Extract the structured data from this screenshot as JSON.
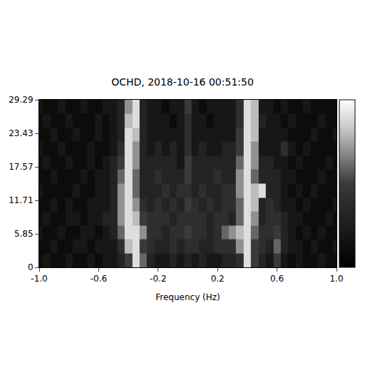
{
  "chart_data": {
    "type": "heatmap",
    "title": "OCHD, 2018-10-16 00:51:50",
    "x_label": "Frequency (Hz)",
    "x": [
      -1.0,
      -0.95,
      -0.9,
      -0.85,
      -0.8,
      -0.75,
      -0.7,
      -0.65,
      -0.6,
      -0.55,
      -0.5,
      -0.45,
      -0.4,
      -0.35,
      -0.3,
      -0.25,
      -0.2,
      -0.15,
      -0.1,
      -0.05,
      0.0,
      0.05,
      0.1,
      0.15,
      0.2,
      0.25,
      0.3,
      0.35,
      0.4,
      0.45,
      0.5,
      0.55,
      0.6,
      0.65,
      0.7,
      0.75,
      0.8,
      0.85,
      0.9,
      0.95,
      1.0
    ],
    "y": [
      1.2,
      3.7,
      6.1,
      8.5,
      11.0,
      13.4,
      15.9,
      18.3,
      20.7,
      23.2,
      25.6,
      28.1
    ],
    "z": [
      [
        1,
        2,
        1,
        1,
        2,
        1,
        1,
        2,
        1,
        2,
        2,
        3,
        5,
        9,
        6,
        3,
        2,
        2,
        3,
        2,
        3,
        2,
        3,
        2,
        2,
        3,
        3,
        4,
        9,
        5,
        3,
        2,
        5,
        2,
        1,
        2,
        1,
        1,
        2,
        1,
        1
      ],
      [
        1,
        1,
        2,
        1,
        1,
        2,
        2,
        1,
        2,
        2,
        2,
        4,
        8,
        9,
        5,
        4,
        3,
        3,
        4,
        3,
        4,
        4,
        3,
        3,
        4,
        4,
        4,
        7,
        9,
        5,
        4,
        3,
        6,
        3,
        2,
        2,
        1,
        2,
        1,
        1,
        2
      ],
      [
        2,
        1,
        1,
        2,
        1,
        1,
        2,
        2,
        1,
        2,
        3,
        6,
        9,
        9,
        7,
        4,
        4,
        3,
        4,
        4,
        5,
        4,
        4,
        3,
        4,
        6,
        7,
        8,
        9,
        6,
        4,
        4,
        5,
        3,
        2,
        1,
        2,
        1,
        2,
        1,
        1
      ],
      [
        1,
        2,
        1,
        1,
        2,
        2,
        1,
        2,
        2,
        3,
        3,
        7,
        9,
        8,
        5,
        4,
        4,
        4,
        3,
        4,
        4,
        4,
        4,
        3,
        4,
        4,
        3,
        6,
        9,
        7,
        3,
        4,
        4,
        3,
        2,
        2,
        1,
        1,
        1,
        2,
        1
      ],
      [
        1,
        1,
        2,
        1,
        2,
        1,
        1,
        2,
        2,
        2,
        3,
        7,
        9,
        7,
        4,
        3,
        4,
        3,
        4,
        3,
        5,
        4,
        3,
        4,
        3,
        4,
        4,
        6,
        9,
        8,
        3,
        4,
        3,
        2,
        2,
        1,
        2,
        1,
        1,
        1,
        2
      ],
      [
        2,
        1,
        1,
        1,
        1,
        2,
        1,
        1,
        2,
        2,
        3,
        7,
        9,
        6,
        3,
        3,
        3,
        4,
        3,
        4,
        4,
        3,
        4,
        3,
        3,
        4,
        4,
        7,
        9,
        8,
        9,
        3,
        3,
        2,
        1,
        2,
        1,
        2,
        1,
        1,
        1
      ],
      [
        1,
        1,
        2,
        1,
        1,
        1,
        2,
        1,
        2,
        2,
        3,
        6,
        9,
        6,
        3,
        3,
        4,
        3,
        3,
        3,
        5,
        3,
        3,
        3,
        4,
        3,
        3,
        7,
        9,
        6,
        3,
        3,
        3,
        2,
        2,
        1,
        1,
        1,
        2,
        1,
        1
      ],
      [
        1,
        2,
        1,
        1,
        2,
        1,
        1,
        2,
        1,
        2,
        3,
        5,
        9,
        7,
        3,
        3,
        3,
        3,
        3,
        2,
        5,
        3,
        3,
        3,
        3,
        3,
        3,
        6,
        9,
        7,
        3,
        3,
        2,
        2,
        1,
        2,
        1,
        1,
        1,
        2,
        1
      ],
      [
        2,
        1,
        1,
        2,
        1,
        1,
        1,
        2,
        1,
        1,
        2,
        4,
        9,
        7,
        3,
        2,
        3,
        2,
        3,
        2,
        4,
        2,
        3,
        2,
        2,
        3,
        3,
        5,
        9,
        7,
        2,
        2,
        2,
        4,
        2,
        1,
        2,
        1,
        1,
        1,
        1
      ],
      [
        1,
        1,
        2,
        1,
        1,
        2,
        1,
        1,
        2,
        1,
        2,
        3,
        9,
        8,
        3,
        2,
        2,
        2,
        2,
        2,
        4,
        2,
        2,
        2,
        2,
        2,
        2,
        5,
        9,
        8,
        2,
        2,
        2,
        2,
        1,
        1,
        1,
        2,
        1,
        1,
        2
      ],
      [
        1,
        2,
        1,
        1,
        2,
        1,
        1,
        1,
        2,
        1,
        2,
        3,
        8,
        9,
        3,
        2,
        2,
        2,
        1,
        2,
        4,
        2,
        2,
        1,
        2,
        2,
        2,
        4,
        9,
        8,
        3,
        2,
        2,
        1,
        2,
        1,
        1,
        1,
        2,
        1,
        1
      ],
      [
        2,
        1,
        1,
        2,
        1,
        1,
        2,
        1,
        1,
        2,
        2,
        3,
        7,
        9,
        3,
        2,
        2,
        1,
        2,
        2,
        5,
        2,
        1,
        2,
        2,
        2,
        2,
        4,
        9,
        8,
        2,
        2,
        1,
        2,
        1,
        1,
        2,
        1,
        1,
        1,
        1
      ]
    ],
    "zlim": [
      0,
      10
    ],
    "xlim": [
      -1.0,
      1.0
    ],
    "xticks": [
      {
        "value": -1.0,
        "label": "-1.0"
      },
      {
        "value": -0.6,
        "label": "-0.6"
      },
      {
        "value": -0.2,
        "label": "-0.2"
      },
      {
        "value": 0.2,
        "label": "0.2"
      },
      {
        "value": 0.6,
        "label": "0.6"
      },
      {
        "value": 1.0,
        "label": "1.0"
      }
    ],
    "ylim": [
      0,
      29.29
    ],
    "yticks": [
      0,
      5.85,
      11.71,
      17.57,
      23.43,
      29.29
    ],
    "colorbar_ticks": false
  }
}
